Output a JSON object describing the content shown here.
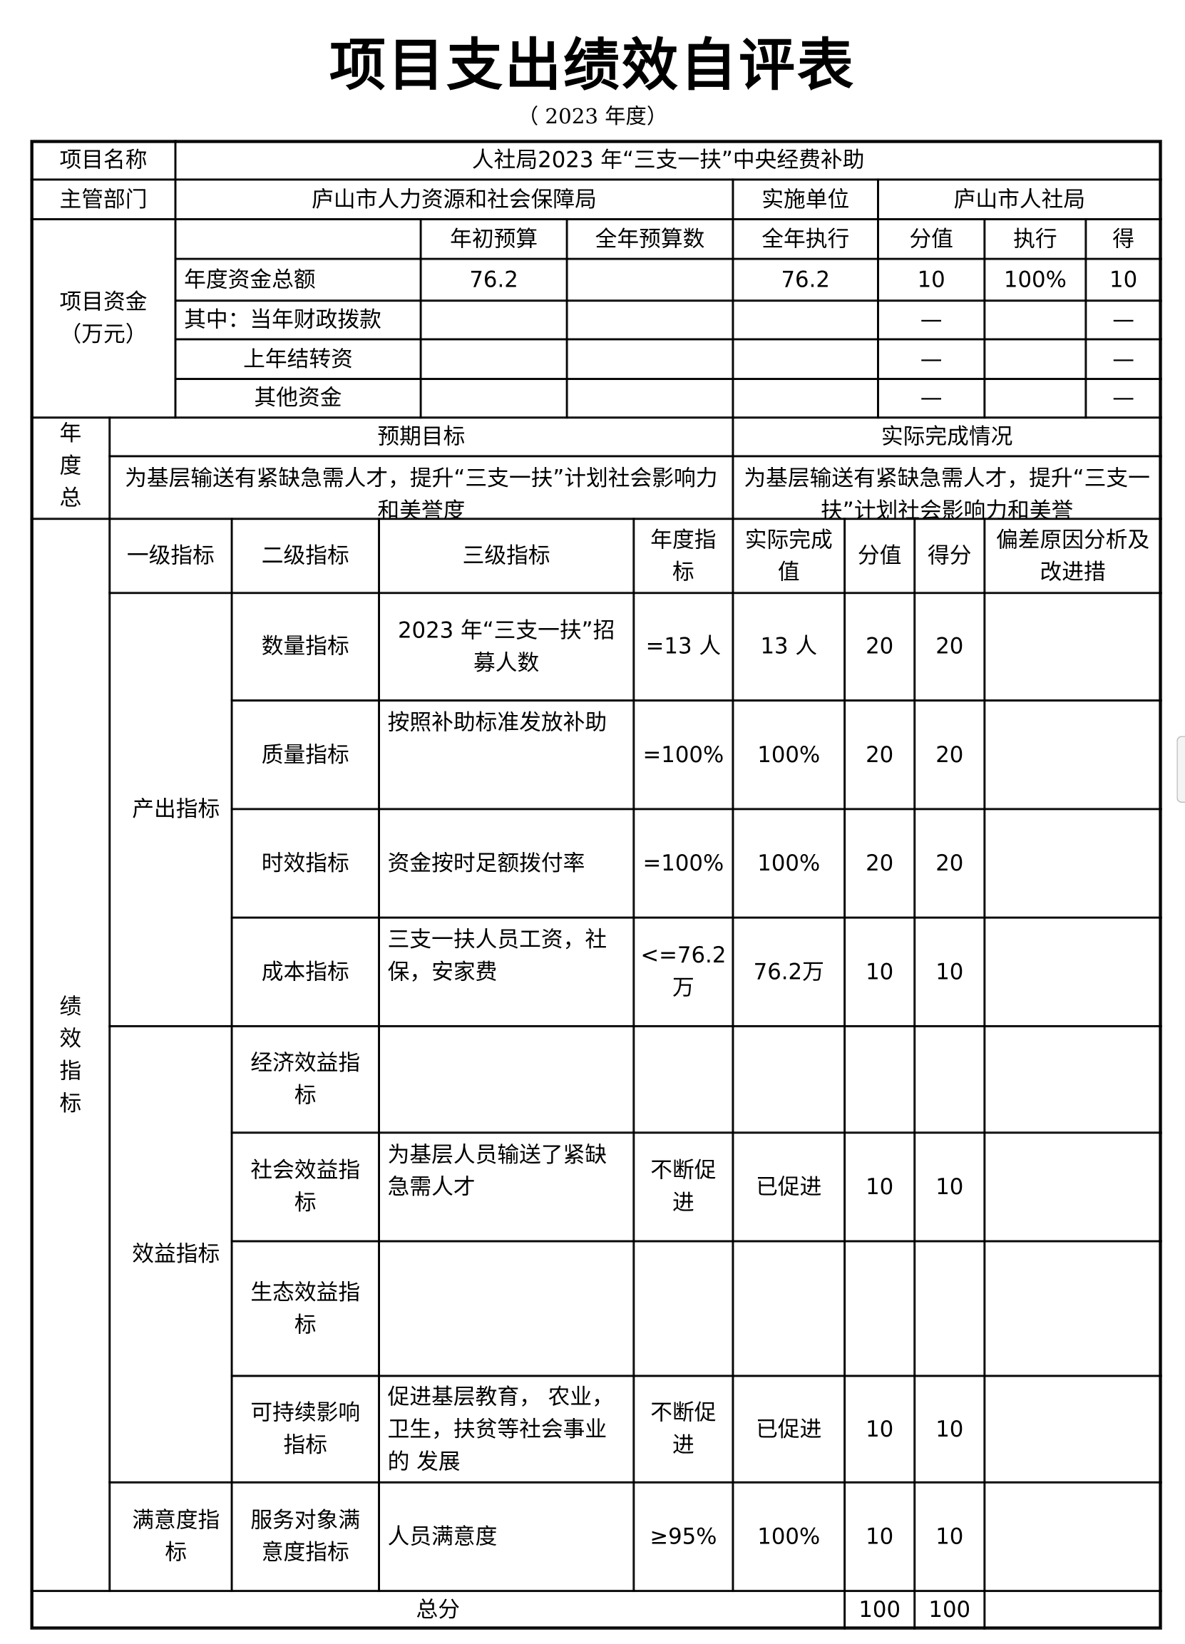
{
  "title": "项目支出绩效自评表",
  "subtitle": "（  2023 年度）",
  "info": {
    "project_name_label": "项目名称",
    "project_name": "人社局2023 年“三支一扶”中央经费补助",
    "dept_label": "主管部门",
    "dept": "庐山市人力资源和社会保障局",
    "impl_label": "实施单位",
    "impl": "庐山市人社局"
  },
  "funds": {
    "label": "项目资金（万元）",
    "headers": [
      "",
      "年初预算",
      "全年预算数",
      "全年执行",
      "分值",
      "执行",
      "得"
    ],
    "rows": [
      {
        "label": "年度资金总额",
        "values": [
          "76.2",
          "",
          "76.2",
          "10",
          "100%",
          "10"
        ]
      },
      {
        "label": "其中：当年财政拨款",
        "values": [
          "",
          "",
          "",
          "—",
          "",
          "—"
        ]
      },
      {
        "label": "上年结转资",
        "values": [
          "",
          "",
          "",
          "—",
          "",
          "—"
        ]
      },
      {
        "label": "其他资金",
        "values": [
          "",
          "",
          "",
          "—",
          "",
          "—"
        ]
      }
    ]
  },
  "goals": {
    "label": "年度总",
    "expected_label": "预期目标",
    "actual_label": "实际完成情况",
    "expected": "为基层输送有紧缺急需人才，提升“三支一扶”计划社会影响力和美誉度",
    "actual": "为基层输送有紧缺急需人才，提升“三支一扶”计划社会影响力和美誉"
  },
  "indicators": {
    "label": "绩效指标",
    "headers": [
      "一级指标",
      "二级指标",
      "三级指标",
      "年度指标",
      "实际完成值",
      "分值",
      "得分",
      "偏差原因分析及改进措"
    ],
    "groups": [
      {
        "name": "产出指标"
      },
      {
        "name": "效益指标"
      },
      {
        "name": "满意度指标"
      }
    ],
    "rows": [
      {
        "l2": "数量指标",
        "l3": "2023 年“三支一扶”招募人数",
        "target": "=13 人",
        "actual": "13 人",
        "score": "20",
        "got": "20",
        "remark": ""
      },
      {
        "l2": "质量指标",
        "l3": "按照补助标准发放补助",
        "target": "=100%",
        "actual": "100%",
        "score": "20",
        "got": "20",
        "remark": ""
      },
      {
        "l2": "时效指标",
        "l3": "资金按时足额拨付率",
        "target": "=100%",
        "actual": "100%",
        "score": "20",
        "got": "20",
        "remark": ""
      },
      {
        "l2": "成本指标",
        "l3": "三支一扶人员工资，社保，安家费",
        "target": "<=76.2万",
        "actual": "76.2万",
        "score": "10",
        "got": "10",
        "remark": ""
      },
      {
        "l2": "经济效益指标",
        "l3": "",
        "target": "",
        "actual": "",
        "score": "",
        "got": "",
        "remark": ""
      },
      {
        "l2": "社会效益指标",
        "l3": "为基层人员输送了紧缺急需人才",
        "target": "不断促进",
        "actual": "已促进",
        "score": "10",
        "got": "10",
        "remark": ""
      },
      {
        "l2": "生态效益指标",
        "l3": "",
        "target": "",
        "actual": "",
        "score": "",
        "got": "",
        "remark": ""
      },
      {
        "l2": "可持续影响指标",
        "l3": "促进基层教育， 农业，卫生，扶贫等社会事业的 发展",
        "target": "不断促进",
        "actual": "已促进",
        "score": "10",
        "got": "10",
        "remark": ""
      },
      {
        "l2": "服务对象满意度指标",
        "l3": "人员满意度",
        "target": "≥95%",
        "actual": "100%",
        "score": "10",
        "got": "10",
        "remark": ""
      }
    ]
  },
  "total": {
    "label": "总分",
    "score": "100",
    "got": "100",
    "remark": ""
  }
}
